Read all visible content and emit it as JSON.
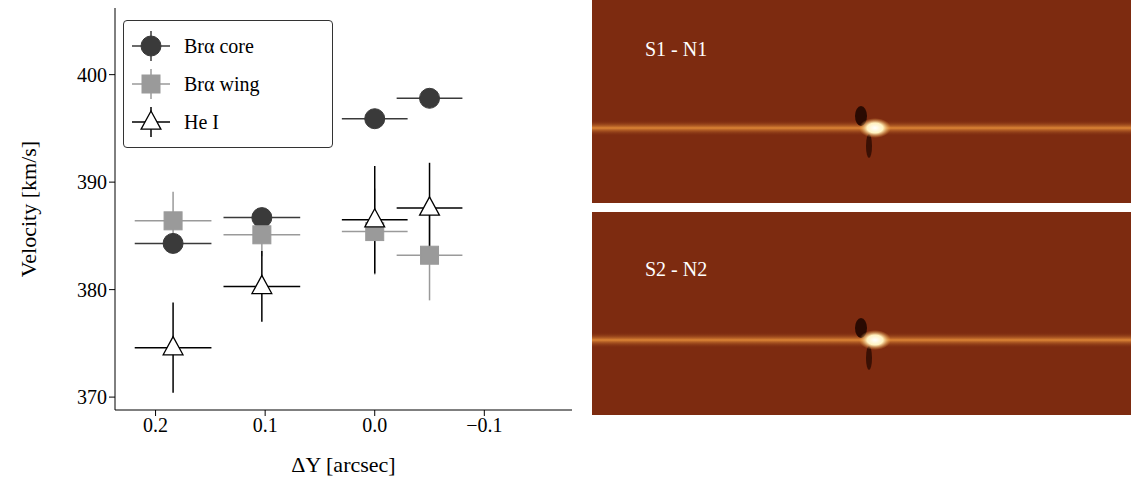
{
  "chart_data": {
    "type": "scatter",
    "x_label": "ΔY [arcsec]",
    "y_label": "Velocity [km/s]",
    "xlim": [
      0.237,
      -0.18
    ],
    "ylim": [
      368.8,
      406.2
    ],
    "xticks": [
      0.2,
      0.1,
      {
        "value": 0,
        "label": "0.0"
      },
      {
        "value": -0.1,
        "label": "−0.1"
      }
    ],
    "yticks": [
      370,
      380,
      390,
      400
    ],
    "grid": false,
    "legend": "upper left",
    "series": [
      {
        "name": "Brα core",
        "color": "#3a3a3a",
        "marker": "circle",
        "x": [
          0.184,
          0.103,
          0.0,
          -0.05
        ],
        "values": [
          384.3,
          386.7,
          395.9,
          397.8
        ],
        "xerr": [
          0.035,
          0.035,
          0.03,
          0.03
        ],
        "yerr": [
          0.4,
          0.5,
          0.4,
          0.4
        ]
      },
      {
        "name": "Brα wing",
        "color": "#9a9a9a",
        "marker": "square",
        "x": [
          0.184,
          0.103,
          0.0,
          -0.05
        ],
        "values": [
          386.4,
          385.1,
          385.4,
          383.2
        ],
        "xerr": [
          0.035,
          0.035,
          0.03,
          0.03
        ],
        "yerr": [
          2.7,
          2.0,
          4.0,
          4.2
        ]
      },
      {
        "name": "He I",
        "color": "#000000",
        "marker": "open_triangle",
        "x": [
          0.184,
          0.103,
          0.0,
          -0.05
        ],
        "values": [
          374.6,
          380.3,
          386.5,
          387.6
        ],
        "xerr": [
          0.035,
          0.035,
          0.03,
          0.03
        ],
        "yerr": [
          4.2,
          3.3,
          5.0,
          4.2
        ]
      }
    ]
  },
  "panels": [
    {
      "title": "S1 - N1"
    },
    {
      "title": "S2 - N2"
    }
  ]
}
